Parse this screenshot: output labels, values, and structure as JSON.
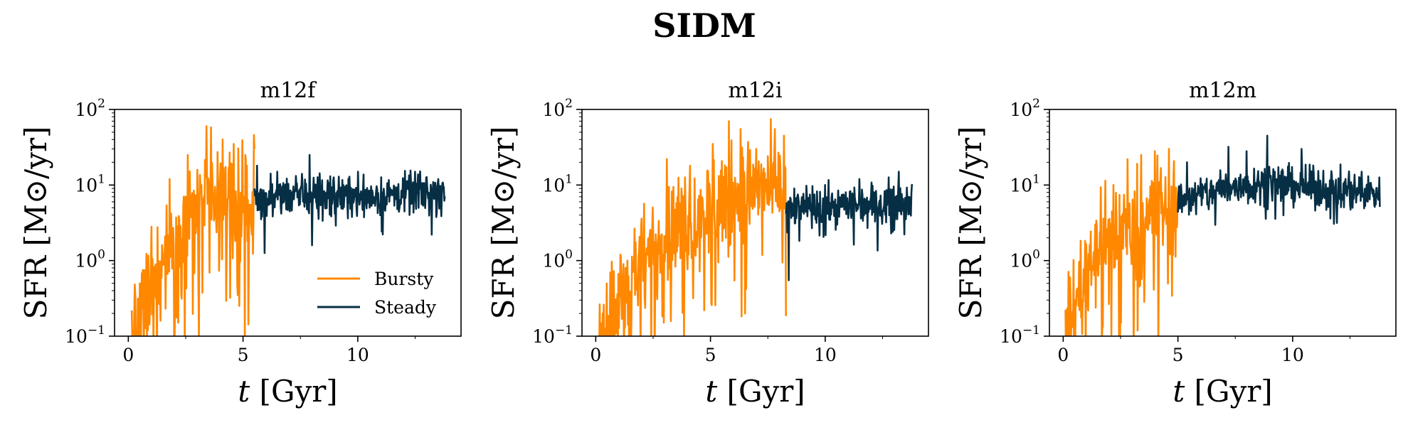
{
  "suptitle": "SIDM",
  "colors": {
    "bursty": "#ff8800",
    "steady": "#062f45"
  },
  "chart_data": [
    {
      "type": "line",
      "title": "m12f",
      "xlabel_var": "t",
      "xlabel_unit": "[Gyr]",
      "ylabel": "SFR [M⊙/yr]",
      "yscale": "log",
      "xlim": [
        -0.6,
        14.5
      ],
      "ylim": [
        0.1,
        100
      ],
      "xticks": [
        0,
        5,
        10
      ],
      "yticks": [
        {
          "base": "10",
          "exp": "−1"
        },
        {
          "base": "10",
          "exp": "0"
        },
        {
          "base": "10",
          "exp": "1"
        },
        {
          "base": "10",
          "exp": "2"
        }
      ],
      "legend": {
        "position": "lower-right",
        "entries": [
          "Bursty",
          "Steady"
        ]
      },
      "transition_t": 5.5,
      "series": [
        {
          "name": "Bursty",
          "t_start": 0.15,
          "t_end": 5.5,
          "envelope": [
            [
              0.15,
              0.1
            ],
            [
              0.8,
              0.3
            ],
            [
              1.6,
              1.2
            ],
            [
              2.4,
              3.0
            ],
            [
              3.2,
              5.5
            ],
            [
              4.0,
              6.5
            ],
            [
              4.8,
              6.0
            ],
            [
              5.5,
              6.5
            ]
          ],
          "peaks": [
            [
              0.5,
              0.5
            ],
            [
              1.0,
              2.8
            ],
            [
              1.8,
              12
            ],
            [
              2.6,
              25
            ],
            [
              3.4,
              60
            ],
            [
              3.6,
              58
            ],
            [
              4.1,
              40
            ],
            [
              4.6,
              35
            ],
            [
              5.1,
              25
            ],
            [
              5.5,
              30
            ]
          ]
        },
        {
          "name": "Steady",
          "t_start": 5.5,
          "t_end": 13.8,
          "envelope": [
            [
              5.5,
              6.0
            ],
            [
              7.0,
              7.5
            ],
            [
              9.0,
              7.5
            ],
            [
              11.0,
              7.0
            ],
            [
              13.8,
              8.5
            ]
          ],
          "peaks": [
            [
              5.6,
              18
            ],
            [
              6.5,
              15
            ],
            [
              7.9,
              25
            ],
            [
              8.0,
              1.6
            ],
            [
              10.0,
              15
            ],
            [
              12.5,
              15
            ],
            [
              13.5,
              12
            ]
          ]
        }
      ]
    },
    {
      "type": "line",
      "title": "m12i",
      "xlabel_var": "t",
      "xlabel_unit": "[Gyr]",
      "ylabel": "SFR [M⊙/yr]",
      "yscale": "log",
      "xlim": [
        -0.6,
        14.5
      ],
      "ylim": [
        0.1,
        100
      ],
      "xticks": [
        0,
        5,
        10
      ],
      "yticks": [
        {
          "base": "10",
          "exp": "−1"
        },
        {
          "base": "10",
          "exp": "0"
        },
        {
          "base": "10",
          "exp": "1"
        },
        {
          "base": "10",
          "exp": "2"
        }
      ],
      "transition_t": 8.3,
      "series": [
        {
          "name": "Bursty",
          "t_start": 0.15,
          "t_end": 8.3,
          "envelope": [
            [
              0.15,
              0.1
            ],
            [
              1.0,
              0.3
            ],
            [
              2.0,
              0.9
            ],
            [
              3.0,
              2.0
            ],
            [
              4.0,
              3.5
            ],
            [
              5.0,
              5.5
            ],
            [
              6.0,
              7.0
            ],
            [
              7.0,
              9.0
            ],
            [
              8.3,
              10.0
            ]
          ],
          "peaks": [
            [
              0.3,
              0.2
            ],
            [
              1.2,
              0.9
            ],
            [
              2.4,
              2.5
            ],
            [
              3.1,
              22
            ],
            [
              4.1,
              18
            ],
            [
              5.1,
              35
            ],
            [
              5.8,
              70
            ],
            [
              6.3,
              55
            ],
            [
              6.5,
              0.2
            ],
            [
              7.0,
              30
            ],
            [
              7.8,
              55
            ],
            [
              8.2,
              45
            ]
          ]
        },
        {
          "name": "Steady",
          "t_start": 8.3,
          "t_end": 13.8,
          "envelope": [
            [
              8.3,
              5.0
            ],
            [
              9.5,
              5.0
            ],
            [
              11.0,
              5.5
            ],
            [
              13.8,
              6.5
            ]
          ],
          "peaks": [
            [
              8.4,
              25
            ],
            [
              8.4,
              0.55
            ],
            [
              10.0,
              10
            ],
            [
              11.5,
              12
            ],
            [
              13.2,
              15
            ]
          ]
        }
      ]
    },
    {
      "type": "line",
      "title": "m12m",
      "xlabel_var": "t",
      "xlabel_unit": "[Gyr]",
      "ylabel": "SFR [M⊙/yr]",
      "yscale": "log",
      "xlim": [
        -0.6,
        14.5
      ],
      "ylim": [
        0.1,
        100
      ],
      "xticks": [
        0,
        5,
        10
      ],
      "yticks": [
        {
          "base": "10",
          "exp": "−1"
        },
        {
          "base": "10",
          "exp": "0"
        },
        {
          "base": "10",
          "exp": "1"
        },
        {
          "base": "10",
          "exp": "2"
        }
      ],
      "transition_t": 5.0,
      "series": [
        {
          "name": "Bursty",
          "t_start": 0.1,
          "t_end": 5.0,
          "envelope": [
            [
              0.1,
              0.1
            ],
            [
              0.7,
              0.4
            ],
            [
              1.3,
              1.2
            ],
            [
              2.0,
              2.0
            ],
            [
              3.0,
              3.0
            ],
            [
              4.0,
              4.5
            ],
            [
              5.0,
              6.0
            ]
          ],
          "peaks": [
            [
              0.5,
              0.3
            ],
            [
              1.4,
              3.0
            ],
            [
              2.2,
              10
            ],
            [
              2.8,
              22
            ],
            [
              3.4,
              25
            ],
            [
              4.0,
              28
            ],
            [
              4.6,
              30
            ],
            [
              5.0,
              22
            ]
          ]
        },
        {
          "name": "Steady",
          "t_start": 5.0,
          "t_end": 13.8,
          "envelope": [
            [
              5.0,
              6.0
            ],
            [
              7.0,
              9.0
            ],
            [
              9.0,
              11.0
            ],
            [
              11.0,
              9.0
            ],
            [
              13.8,
              8.0
            ]
          ],
          "peaks": [
            [
              5.4,
              20
            ],
            [
              7.2,
              32
            ],
            [
              8.0,
              28
            ],
            [
              8.9,
              45
            ],
            [
              10.4,
              30
            ],
            [
              13.0,
              15
            ]
          ]
        }
      ]
    }
  ]
}
